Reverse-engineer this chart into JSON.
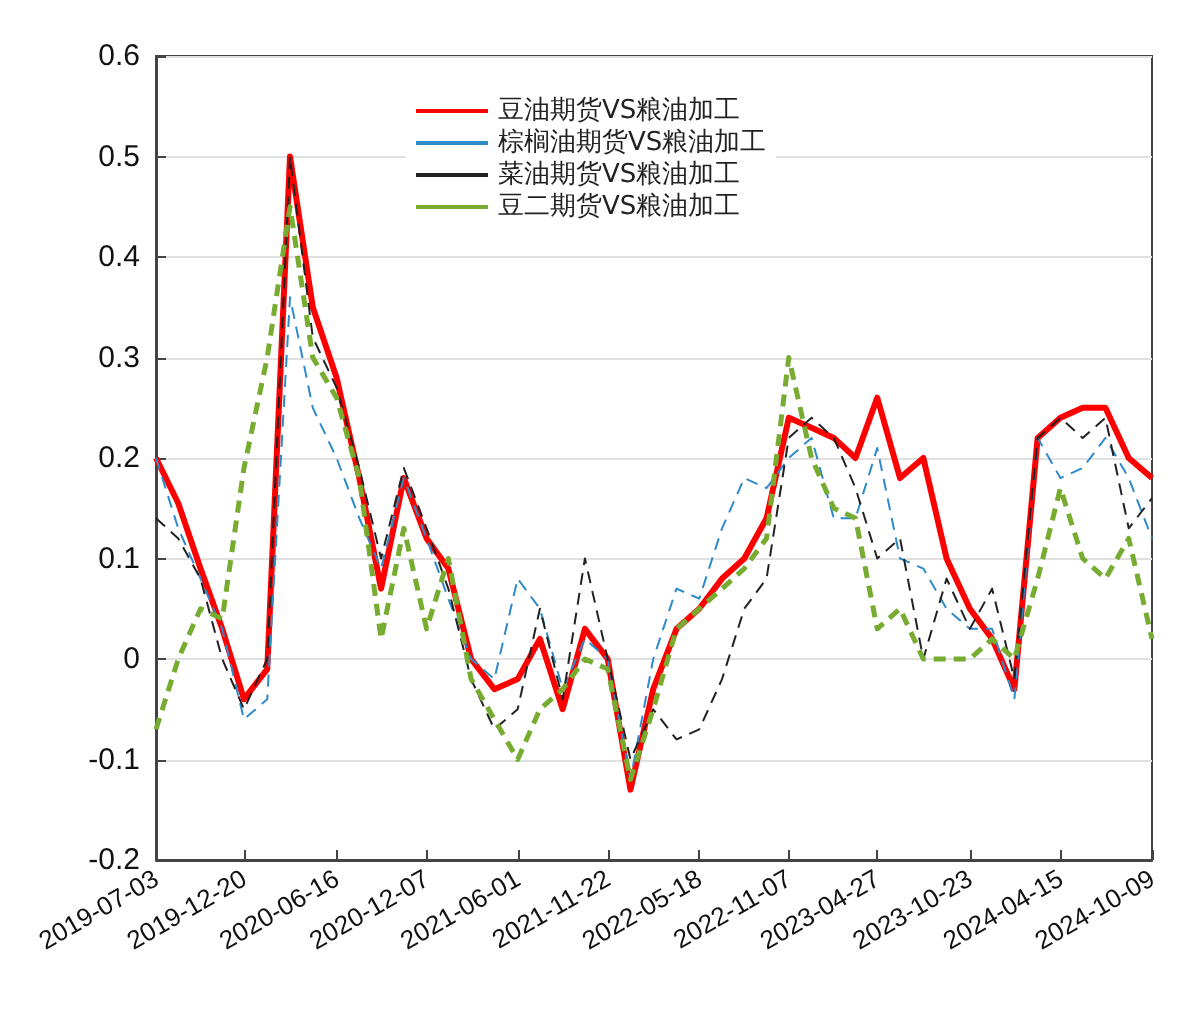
{
  "chart_data": {
    "type": "line",
    "x": [
      "2019-07-03",
      "2019-08-15",
      "2019-09-27",
      "2019-11-08",
      "2019-12-20",
      "2020-02-03",
      "2020-03-18",
      "2020-05-01",
      "2020-06-16",
      "2020-07-30",
      "2020-09-10",
      "2020-10-24",
      "2020-12-07",
      "2021-01-18",
      "2021-03-03",
      "2021-04-17",
      "2021-06-01",
      "2021-07-14",
      "2021-08-27",
      "2021-10-09",
      "2021-11-22",
      "2022-01-05",
      "2022-02-18",
      "2022-04-04",
      "2022-05-18",
      "2022-07-01",
      "2022-08-13",
      "2022-09-25",
      "2022-11-07",
      "2022-12-21",
      "2023-02-02",
      "2023-03-16",
      "2023-04-27",
      "2023-06-10",
      "2023-07-25",
      "2023-09-08",
      "2023-10-23",
      "2023-12-05",
      "2024-01-17",
      "2024-03-02",
      "2024-04-15",
      "2024-05-28",
      "2024-07-11",
      "2024-08-25",
      "2024-10-09"
    ],
    "series": [
      {
        "name": "豆油期货VS粮油加工",
        "color": "#ff0000",
        "line_style": "solid",
        "values": [
          0.2,
          0.155,
          0.09,
          0.03,
          -0.04,
          -0.01,
          0.5,
          0.35,
          0.28,
          0.18,
          0.07,
          0.18,
          0.12,
          0.09,
          0.0,
          -0.03,
          -0.02,
          0.02,
          -0.05,
          0.03,
          0.0,
          -0.13,
          -0.03,
          0.03,
          0.05,
          0.08,
          0.1,
          0.14,
          0.24,
          0.23,
          0.22,
          0.2,
          0.26,
          0.18,
          0.2,
          0.1,
          0.05,
          0.02,
          -0.03,
          0.22,
          0.24,
          0.25,
          0.25,
          0.2,
          0.18
        ]
      },
      {
        "name": "棕榈油期货VS粮油加工",
        "color": "#2e8bc9",
        "line_style": "dashed",
        "values": [
          0.2,
          0.13,
          0.08,
          0.03,
          -0.06,
          -0.04,
          0.36,
          0.25,
          0.2,
          0.14,
          0.09,
          0.18,
          0.12,
          0.06,
          0.0,
          -0.02,
          0.08,
          0.05,
          -0.03,
          0.02,
          0.0,
          -0.12,
          0.0,
          0.07,
          0.06,
          0.13,
          0.18,
          0.17,
          0.2,
          0.22,
          0.14,
          0.14,
          0.21,
          0.1,
          0.09,
          0.05,
          0.03,
          0.03,
          -0.04,
          0.22,
          0.18,
          0.19,
          0.22,
          0.18,
          0.12
        ]
      },
      {
        "name": "菜油期货VS粮油加工",
        "color": "#222222",
        "line_style": "dashed",
        "values": [
          0.14,
          0.12,
          0.08,
          0.0,
          -0.05,
          0.0,
          0.5,
          0.32,
          0.27,
          0.19,
          0.1,
          0.19,
          0.13,
          0.07,
          -0.02,
          -0.07,
          -0.05,
          0.05,
          -0.04,
          0.1,
          0.0,
          -0.1,
          -0.05,
          -0.08,
          -0.07,
          -0.02,
          0.05,
          0.08,
          0.22,
          0.24,
          0.22,
          0.17,
          0.1,
          0.12,
          0.0,
          0.08,
          0.03,
          0.07,
          -0.02,
          0.22,
          0.24,
          0.22,
          0.24,
          0.13,
          0.16
        ]
      },
      {
        "name": "豆二期货VS粮油加工",
        "color": "#77ac30",
        "line_style": "dashed",
        "values": [
          -0.07,
          0.0,
          0.05,
          0.04,
          0.19,
          0.3,
          0.45,
          0.3,
          0.26,
          0.18,
          0.02,
          0.13,
          0.03,
          0.1,
          -0.02,
          -0.06,
          -0.1,
          -0.05,
          -0.03,
          0.0,
          -0.01,
          -0.12,
          -0.05,
          0.03,
          0.05,
          0.07,
          0.09,
          0.12,
          0.3,
          0.2,
          0.15,
          0.14,
          0.03,
          0.05,
          0.0,
          0.0,
          0.0,
          0.02,
          0.0,
          0.08,
          0.17,
          0.1,
          0.08,
          0.12,
          0.02
        ]
      }
    ],
    "ylim": [
      -0.2,
      0.6
    ],
    "yticks": [
      -0.2,
      -0.1,
      0,
      0.1,
      0.2,
      0.3,
      0.4,
      0.5,
      0.6
    ],
    "xlim": [
      "2019-07-03",
      "2024-10-09"
    ],
    "xticks": [
      "2019-07-03",
      "2019-12-20",
      "2020-06-16",
      "2020-12-07",
      "2021-06-01",
      "2021-11-22",
      "2022-05-18",
      "2022-11-07",
      "2023-04-27",
      "2023-10-23",
      "2024-04-15",
      "2024-10-09"
    ],
    "grid": "y",
    "legend": "top",
    "marker": "none"
  }
}
